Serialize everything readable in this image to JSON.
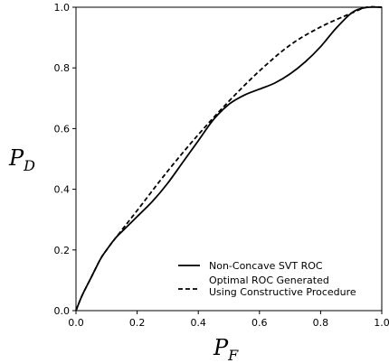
{
  "chart_data": {
    "type": "line",
    "xlabel": "P",
    "xlabel_sub": "F",
    "ylabel": "P",
    "ylabel_sub": "D",
    "xlim": [
      0.0,
      1.0
    ],
    "ylim": [
      0.0,
      1.0
    ],
    "x_ticks": [
      "0.0",
      "0.2",
      "0.4",
      "0.6",
      "0.8",
      "1.0"
    ],
    "y_ticks": [
      "0.0",
      "0.2",
      "0.4",
      "0.6",
      "0.8",
      "1.0"
    ],
    "grid": false,
    "legend_position": "lower-right",
    "series": [
      {
        "name": "Non-Concave SVT ROC",
        "style": "solid",
        "color": "#000000",
        "x": [
          0.0,
          0.02,
          0.05,
          0.08,
          0.1,
          0.13,
          0.16,
          0.2,
          0.25,
          0.3,
          0.35,
          0.4,
          0.45,
          0.5,
          0.55,
          0.6,
          0.65,
          0.7,
          0.75,
          0.8,
          0.85,
          0.9,
          0.93,
          0.96,
          1.0
        ],
        "y": [
          0.0,
          0.05,
          0.11,
          0.17,
          0.2,
          0.24,
          0.27,
          0.31,
          0.36,
          0.42,
          0.49,
          0.56,
          0.63,
          0.68,
          0.71,
          0.73,
          0.75,
          0.78,
          0.82,
          0.87,
          0.93,
          0.98,
          0.995,
          1.0,
          1.0
        ]
      },
      {
        "name": "Optimal ROC Generated\nUsing Constructive Procedure",
        "name_lines": [
          "Optimal ROC Generated",
          "Using Constructive Procedure"
        ],
        "style": "dashed",
        "color": "#000000",
        "x": [
          0.0,
          0.02,
          0.05,
          0.08,
          0.1,
          0.13,
          0.2,
          0.3,
          0.4,
          0.5,
          0.6,
          0.7,
          0.8,
          0.9,
          0.95,
          1.0
        ],
        "y": [
          0.0,
          0.05,
          0.11,
          0.17,
          0.2,
          0.24,
          0.33,
          0.46,
          0.58,
          0.69,
          0.79,
          0.875,
          0.935,
          0.98,
          1.0,
          1.0
        ]
      }
    ]
  }
}
